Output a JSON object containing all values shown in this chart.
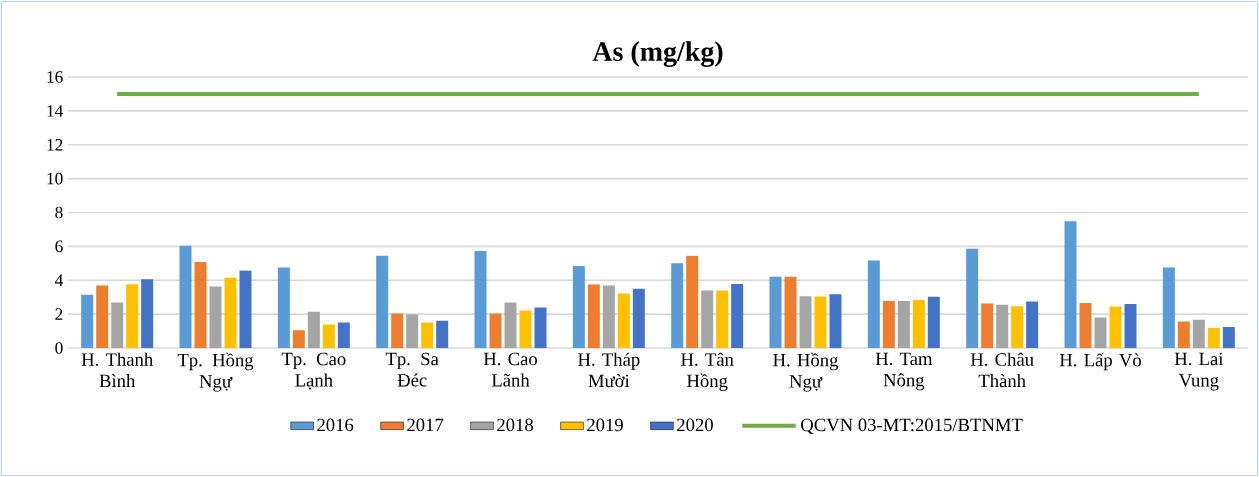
{
  "chart_data": {
    "type": "bar",
    "title": "As (mg/kg)",
    "categories": [
      "H. Thanh Bình",
      "Tp. Hồng Ngự",
      "Tp. Cao Lạnh",
      "Tp. Sa Đéc",
      "H. Cao Lãnh",
      "H. Tháp Mười",
      "H. Tân Hồng",
      "H. Hồng Ngự",
      "H. Tam Nông",
      "H. Châu Thành",
      "H. Lấp Vò",
      "H. Lai Vung"
    ],
    "series": [
      {
        "name": "2016",
        "color": "#5b9bd5",
        "values": [
          3.14,
          6.04,
          4.75,
          5.45,
          5.73,
          4.84,
          5.0,
          4.2,
          5.16,
          5.86,
          7.49,
          4.75
        ]
      },
      {
        "name": "2017",
        "color": "#ed7d31",
        "values": [
          3.69,
          5.08,
          1.04,
          2.04,
          2.04,
          3.75,
          5.45,
          4.2,
          2.78,
          2.63,
          2.65,
          1.57
        ]
      },
      {
        "name": "2018",
        "color": "#a5a5a5",
        "values": [
          2.69,
          3.63,
          2.14,
          1.98,
          2.69,
          3.69,
          3.39,
          3.06,
          2.78,
          2.55,
          1.8,
          1.67
        ]
      },
      {
        "name": "2019",
        "color": "#ffc000",
        "values": [
          3.76,
          4.14,
          1.39,
          1.51,
          2.22,
          3.22,
          3.39,
          3.04,
          2.84,
          2.47,
          2.45,
          1.18
        ]
      },
      {
        "name": "2020",
        "color": "#4472c4",
        "values": [
          4.06,
          4.57,
          1.51,
          1.61,
          2.39,
          3.49,
          3.78,
          3.18,
          3.02,
          2.75,
          2.59,
          1.24
        ]
      },
      {
        "name": "QCVN 03-MT:2015/BTNMT",
        "type": "line",
        "color": "#70ad47",
        "values": [
          15,
          15,
          15,
          15,
          15,
          15,
          15,
          15,
          15,
          15,
          15,
          15
        ]
      }
    ],
    "ylim": [
      0,
      16
    ],
    "yticks": [
      0,
      2,
      4,
      6,
      8,
      10,
      12,
      14,
      16
    ],
    "grid": "y",
    "legend": "bottom"
  }
}
